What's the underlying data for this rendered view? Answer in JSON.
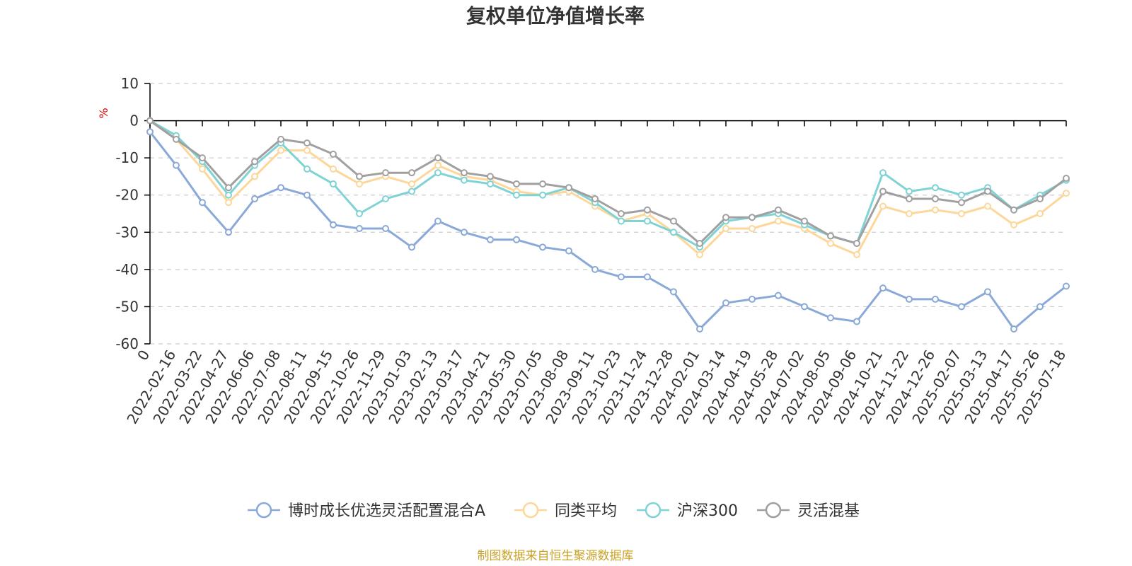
{
  "title": "复权单位净值增长率",
  "source_note": "制图数据来自恒生聚源数据库",
  "chart_data": {
    "type": "line",
    "title": "复权单位净值增长率",
    "ylabel": "%",
    "ylim": [
      -60,
      10
    ],
    "yticks": [
      10,
      0,
      -10,
      -20,
      -30,
      -40,
      -50,
      -60
    ],
    "grid": true,
    "legend_position": "bottom",
    "x_labels": [
      "0",
      "2022-02-16",
      "2022-03-22",
      "2022-04-27",
      "2022-06-06",
      "2022-07-08",
      "2022-08-11",
      "2022-09-15",
      "2022-10-26",
      "2022-11-29",
      "2023-01-03",
      "2023-02-13",
      "2023-03-17",
      "2023-04-21",
      "2023-05-30",
      "2023-07-05",
      "2023-08-08",
      "2023-09-11",
      "2023-10-23",
      "2023-11-24",
      "2023-12-28",
      "2024-02-01",
      "2024-03-14",
      "2024-04-19",
      "2024-05-28",
      "2024-07-02",
      "2024-08-05",
      "2024-09-06",
      "2024-10-21",
      "2024-11-22",
      "2024-12-26",
      "2025-02-07",
      "2025-03-13",
      "2025-04-17",
      "2025-05-26",
      "2025-07-18"
    ],
    "series": [
      {
        "name": "博时成长优选灵活配置混合A",
        "color": "#8aa9d8",
        "values": [
          -3,
          -12,
          -22,
          -30,
          -21,
          -18,
          -20,
          -28,
          -29,
          -29,
          -34,
          -27,
          -30,
          -32,
          -32,
          -34,
          -35,
          -40,
          -42,
          -42,
          -46,
          -56,
          -49,
          -48,
          -47,
          -50,
          -53,
          -54,
          -45,
          -48,
          -48,
          -50,
          -46,
          -56,
          -50,
          -44.5
        ]
      },
      {
        "name": "同类平均",
        "color": "#fdd79a",
        "values": [
          0,
          -5,
          -13,
          -22,
          -15,
          -8,
          -8,
          -13,
          -17,
          -15,
          -17,
          -12,
          -15,
          -16,
          -19,
          -20,
          -19,
          -23,
          -27,
          -25,
          -30,
          -36,
          -29,
          -29,
          -27,
          -29,
          -33,
          -36,
          -23,
          -25,
          -24,
          -25,
          -23,
          -28,
          -25,
          -19.5
        ]
      },
      {
        "name": "沪深300",
        "color": "#7fd3d4",
        "values": [
          0,
          -4,
          -11,
          -20,
          -12,
          -6,
          -13,
          -17,
          -25,
          -21,
          -19,
          -14,
          -16,
          -17,
          -20,
          -20,
          -18,
          -22,
          -27,
          -27,
          -30,
          -34,
          -27,
          -26,
          -25,
          -28,
          -31,
          -33,
          -14,
          -19,
          -18,
          -20,
          -18,
          -24,
          -20,
          -16
        ]
      },
      {
        "name": "灵活混基",
        "color": "#a0a0a0",
        "values": [
          0,
          -5,
          -10,
          -18,
          -11,
          -5,
          -6,
          -9,
          -15,
          -14,
          -14,
          -10,
          -14,
          -15,
          -17,
          -17,
          -18,
          -21,
          -25,
          -24,
          -27,
          -33,
          -26,
          -26,
          -24,
          -27,
          -31,
          -33,
          -19,
          -21,
          -21,
          -22,
          -19,
          -24,
          -21,
          -15.5
        ]
      }
    ]
  }
}
